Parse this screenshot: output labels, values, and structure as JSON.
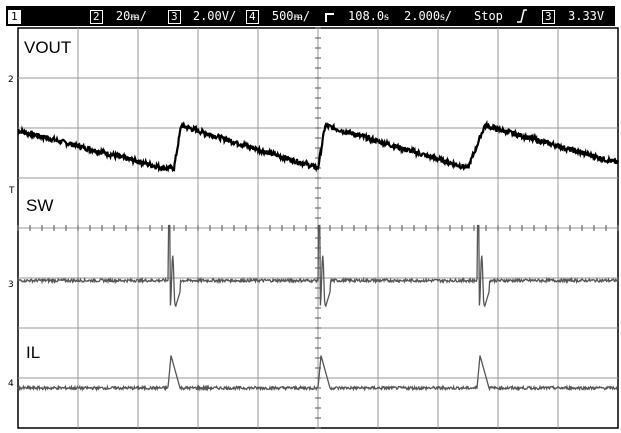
{
  "status_bar": {
    "ch1_number": "1",
    "ch2_number": "2",
    "ch2_scale": "20ᵯ/",
    "ch3_number": "3",
    "ch3_scale": "2.00V/",
    "ch4_number": "4",
    "ch4_scale": "500ᵯ/",
    "time_delay": "108.0ᵴ",
    "time_scale": "2.000ᵴ/",
    "run_state": "Stop",
    "trigger_slope_icon": "rising-edge",
    "trigger_source": "3",
    "trigger_level": "3.33V"
  },
  "chart_data": {
    "type": "line",
    "grid": true,
    "divisions": {
      "x": 10,
      "y": 8
    },
    "x_range_div": [
      0,
      10
    ],
    "y_range_div": [
      0,
      8
    ],
    "trigger_position_div": 5.0,
    "switching_period_div": 2.6,
    "series": [
      {
        "name": "VOUT",
        "color": "#000000",
        "description_points_div": [
          [
            0.0,
            5.95
          ],
          [
            2.42,
            5.2
          ],
          [
            2.6,
            5.2
          ],
          [
            2.72,
            6.05
          ],
          [
            5.0,
            5.2
          ],
          [
            5.12,
            6.05
          ],
          [
            7.5,
            5.2
          ],
          [
            7.78,
            6.05
          ],
          [
            10.0,
            5.3
          ]
        ],
        "noise_div": 0.05
      },
      {
        "name": "SW",
        "color": "#555555",
        "baseline_div": 2.95,
        "spike_times_div": [
          2.5,
          5.0,
          7.65
        ],
        "spike_top_div": 4.05,
        "spike_low_div": 2.4,
        "noise_div": 0.03
      },
      {
        "name": "IL",
        "color": "#555555",
        "baseline_div": 0.8,
        "pulse_times_div": [
          2.5,
          5.0,
          7.65
        ],
        "pulse_peak_div": 1.45,
        "pulse_width_div": 0.2,
        "noise_div": 0.03
      }
    ],
    "labels": [
      "VOUT",
      "SW",
      "IL"
    ],
    "channel_markers": [
      "2",
      "T",
      "3",
      "4"
    ]
  }
}
